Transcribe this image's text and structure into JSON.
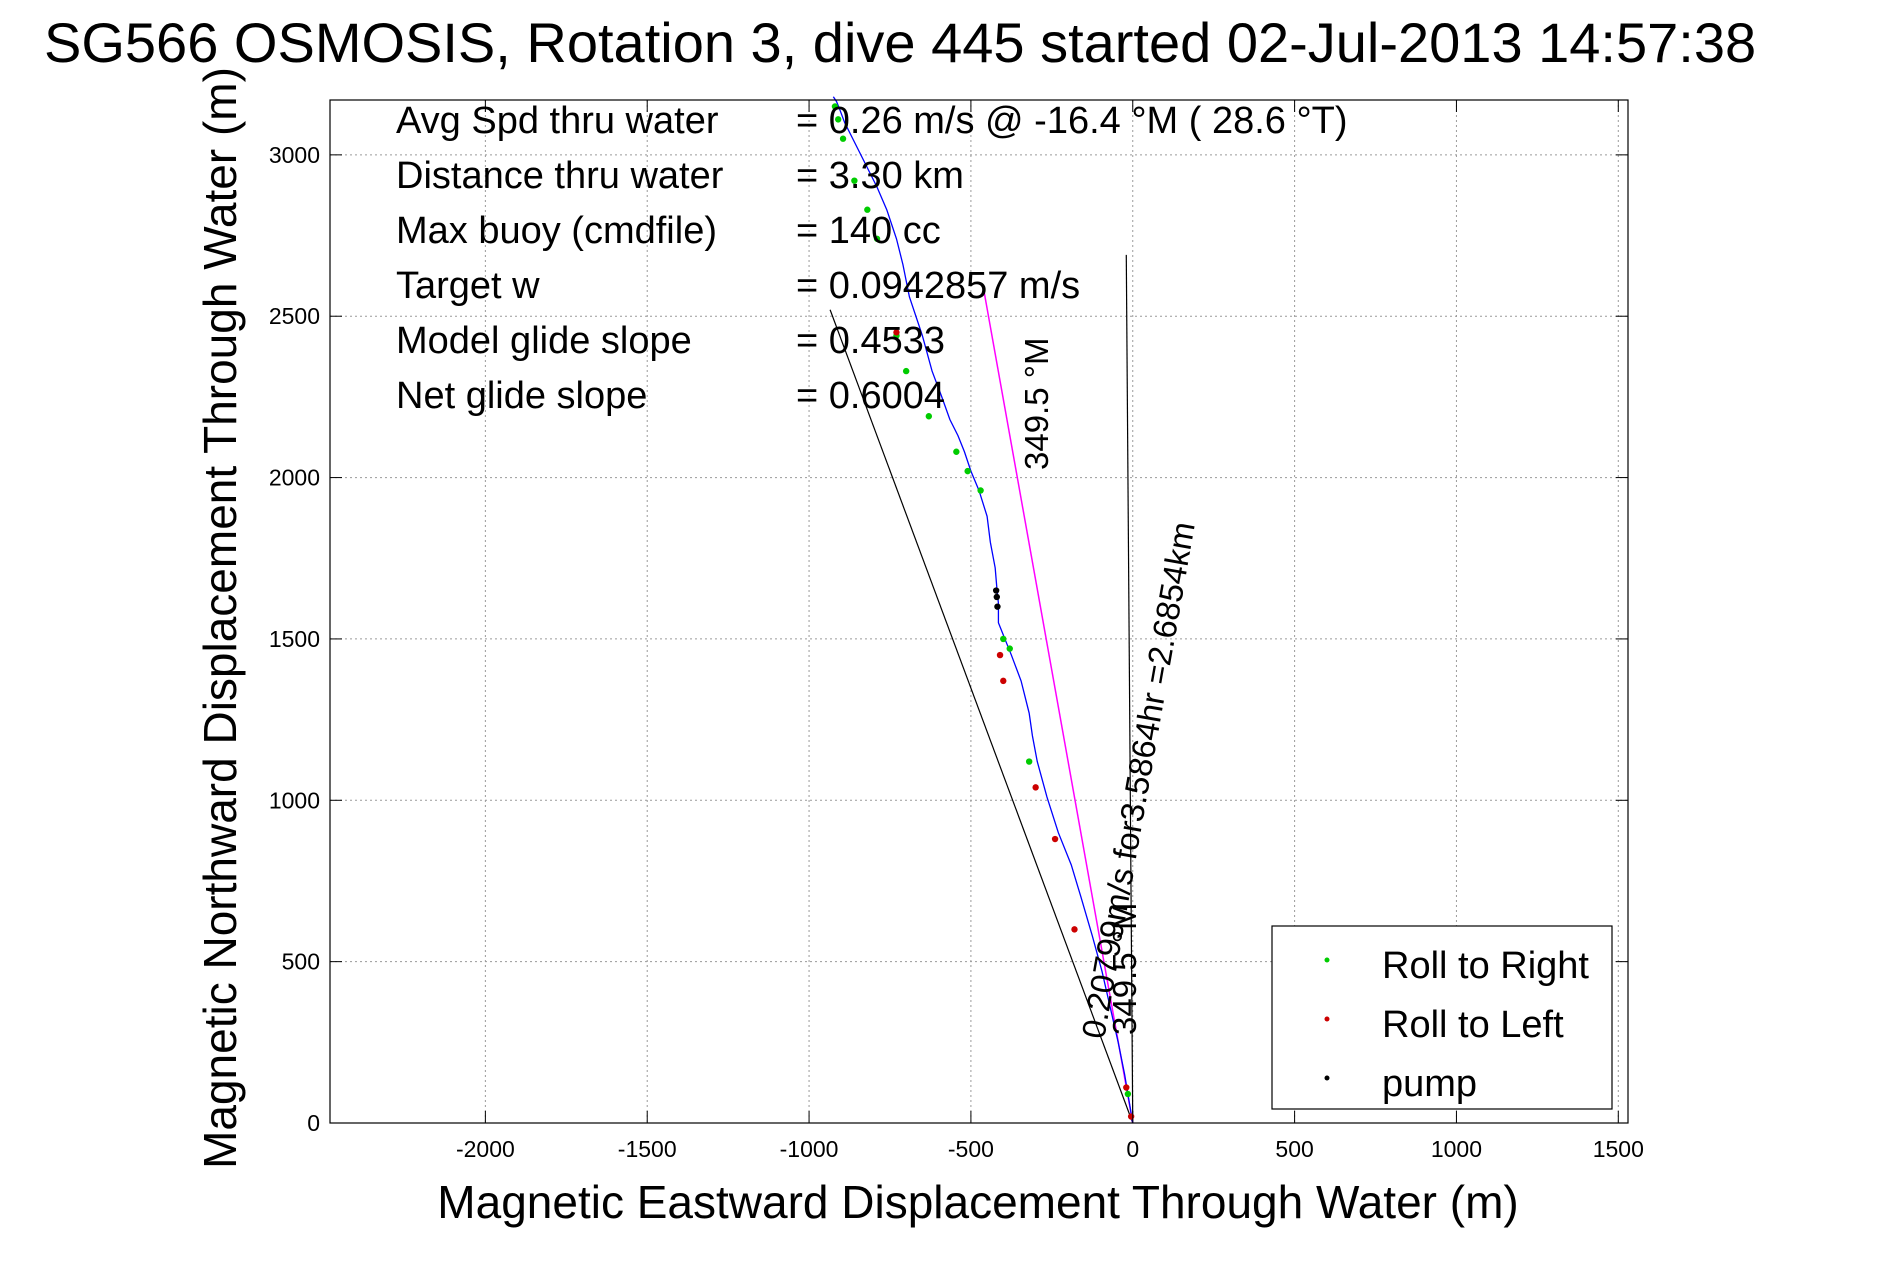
{
  "chart_data": {
    "type": "line",
    "title": "SG566 OSMOSIS, Rotation 3, dive 445 started 02-Jul-2013 14:57:38",
    "xlabel": "Magnetic Eastward Displacement Through Water (m)",
    "ylabel": "Magnetic Northward Displacement Through Water (m)",
    "xlim": [
      -2480,
      1530
    ],
    "ylim": [
      0,
      3170
    ],
    "grid": true,
    "x_ticks": [
      -2000,
      -1500,
      -1000,
      -500,
      0,
      500,
      1000,
      1500
    ],
    "x_tick_labels": [
      "-2000",
      "-1500",
      "-1000",
      "-500",
      "0",
      "500",
      "1000",
      "1500"
    ],
    "y_ticks": [
      0,
      500,
      1000,
      1500,
      2000,
      2500,
      3000
    ],
    "y_tick_labels": [
      "0",
      "500",
      "1000",
      "1500",
      "2000",
      "2500",
      "3000"
    ],
    "stats": [
      {
        "label": "Avg Spd thru water",
        "value": "=  0.26 m/s @ -16.4 °M ( 28.6 °T)"
      },
      {
        "label": "Distance thru water",
        "value": "=  3.30 km"
      },
      {
        "label": "Max buoy (cmdfile)",
        "value": "= 140 cc"
      },
      {
        "label": "Target w",
        "value": "= 0.0942857 m/s"
      },
      {
        "label": "Model glide slope",
        "value": "= 0.4533"
      },
      {
        "label": "Net glide slope",
        "value": "= 0.6004"
      }
    ],
    "annotations": [
      {
        "text": "0.20799m/s for3.5864hr =2.6854km",
        "role": "current-vector-label"
      },
      {
        "text": "349.5 °M",
        "role": "heading-label"
      },
      {
        "text": "349.5 °M",
        "role": "heading-label"
      }
    ],
    "legend": {
      "placement": "bottom-right",
      "entries": [
        {
          "name": "Roll to Right",
          "color": "#00cc00"
        },
        {
          "name": "Roll to Left",
          "color": "#cc0000"
        },
        {
          "name": "pump",
          "color": "#000000"
        }
      ]
    },
    "series": [
      {
        "name": "track",
        "color": "#0000ff",
        "x": [
          0,
          -10,
          -25,
          -45,
          -70,
          -95,
          -125,
          -160,
          -190,
          -230,
          -265,
          -295,
          -310,
          -320,
          -345,
          -375,
          -395,
          -415,
          -415,
          -420,
          -425,
          -440,
          -450,
          -475,
          -500,
          -520,
          -540,
          -565,
          -590,
          -620,
          -650,
          -690,
          -710,
          -730,
          -760,
          -790,
          -820,
          -845,
          -870,
          -890,
          -905,
          -915,
          -925
        ],
        "y": [
          0,
          60,
          150,
          250,
          360,
          470,
          580,
          700,
          800,
          900,
          1010,
          1120,
          1200,
          1270,
          1370,
          1450,
          1500,
          1550,
          1610,
          1660,
          1720,
          1800,
          1880,
          1960,
          2020,
          2080,
          2130,
          2180,
          2250,
          2330,
          2440,
          2560,
          2660,
          2740,
          2830,
          2900,
          2960,
          3010,
          3060,
          3100,
          3140,
          3165,
          3180
        ]
      },
      {
        "name": "Roll to Right",
        "color": "#00cc00",
        "x": [
          -15,
          -320,
          -380,
          -400,
          -470,
          -510,
          -545,
          -630,
          -700,
          -730,
          -790,
          -820,
          -860,
          -895,
          -910,
          -920
        ],
        "y": [
          90,
          1120,
          1470,
          1500,
          1960,
          2020,
          2080,
          2190,
          2330,
          2440,
          2740,
          2830,
          2920,
          3050,
          3110,
          3150
        ]
      },
      {
        "name": "Roll to Left",
        "color": "#cc0000",
        "x": [
          -5,
          -20,
          -180,
          -240,
          -300,
          -400,
          -410,
          -730
        ],
        "y": [
          20,
          110,
          600,
          880,
          1040,
          1370,
          1450,
          2450
        ]
      },
      {
        "name": "pump",
        "color": "#000000",
        "x": [
          -418,
          -420,
          -422
        ],
        "y": [
          1600,
          1630,
          1650
        ]
      },
      {
        "name": "current-vector",
        "color": "#ff00ff",
        "x": [
          0,
          -460
        ],
        "y": [
          0,
          2580
        ]
      },
      {
        "name": "model-glide-line",
        "color": "#000000",
        "x": [
          0,
          -935
        ],
        "y": [
          0,
          2520
        ]
      },
      {
        "name": "heading-line",
        "color": "#000000",
        "x": [
          0,
          -20
        ],
        "y": [
          0,
          2690
        ]
      }
    ]
  }
}
